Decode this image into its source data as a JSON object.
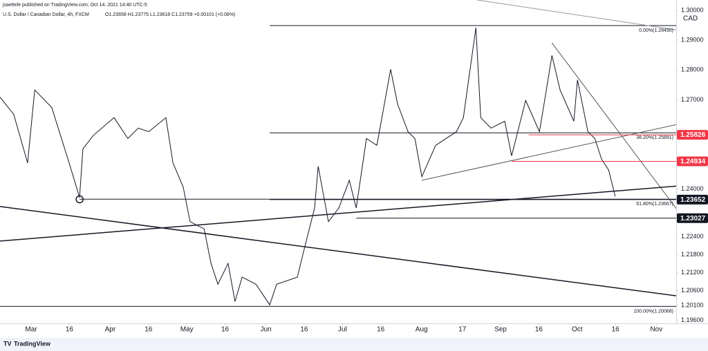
{
  "chart_data": {
    "type": "line",
    "publisher_note": "jsaettele published on TradingView.com, Oct 14, 2021 14:40 UTC-5",
    "title": "U.S. Dollar / Canadian Dollar, 4h, FXCM",
    "ohlc": "O1.23658 H1.23775 L1.23618 C1.23759 +0.00101 (+0.08%)",
    "currency": "CAD",
    "brand": "TradingView",
    "xlim": [
      -12.2,
      252.8
    ],
    "ylim": [
      1.19498,
      1.30349
    ],
    "xticks": [
      {
        "value": 0,
        "label": "Mar"
      },
      {
        "value": 15,
        "label": "16"
      },
      {
        "value": 31,
        "label": "Apr"
      },
      {
        "value": 46,
        "label": "16"
      },
      {
        "value": 61,
        "label": "May"
      },
      {
        "value": 76,
        "label": "16"
      },
      {
        "value": 92,
        "label": "Jun"
      },
      {
        "value": 107,
        "label": "16"
      },
      {
        "value": 122,
        "label": "Jul"
      },
      {
        "value": 137,
        "label": "16"
      },
      {
        "value": 153,
        "label": "Aug"
      },
      {
        "value": 169,
        "label": "17"
      },
      {
        "value": 184,
        "label": "Sep"
      },
      {
        "value": 199,
        "label": "16"
      },
      {
        "value": 214,
        "label": "Oct"
      },
      {
        "value": 229,
        "label": "16"
      },
      {
        "value": 245,
        "label": "Nov"
      }
    ],
    "yticks": [
      {
        "value": 1.3,
        "label": "1.30000"
      },
      {
        "value": 1.29,
        "label": "1.29000"
      },
      {
        "value": 1.28,
        "label": "1.28000"
      },
      {
        "value": 1.27,
        "label": "1.27000"
      },
      {
        "value": 1.24,
        "label": "1.24000"
      },
      {
        "value": 1.224,
        "label": "1.22400"
      },
      {
        "value": 1.218,
        "label": "1.21800"
      },
      {
        "value": 1.212,
        "label": "1.21200"
      },
      {
        "value": 1.206,
        "label": "1.20600"
      },
      {
        "value": 1.201,
        "label": "1.20100"
      },
      {
        "value": 1.196,
        "label": "1.19600"
      }
    ],
    "series": [
      {
        "name": "USD/CAD",
        "color": "#131722",
        "x": [
          -12.2,
          -6.8,
          -1.4,
          1.4,
          8.1,
          14.9,
          19.0,
          20.3,
          24.4,
          32.5,
          37.9,
          42.0,
          46.1,
          52.8,
          55.6,
          59.6,
          62.3,
          67.8,
          70.5,
          73.2,
          77.2,
          79.9,
          82.7,
          88.1,
          93.5,
          96.2,
          104.3,
          107.0,
          111.1,
          112.5,
          116.5,
          120.6,
          124.7,
          127.4,
          131.4,
          135.5,
          140.9,
          143.6,
          147.7,
          150.4,
          153.1,
          158.5,
          166.7,
          169.4,
          174.3,
          176.2,
          180.2,
          185.6,
          188.3,
          193.8,
          199.2,
          201.9,
          204.1,
          207.3,
          212.7,
          214.1,
          218.2,
          220.9,
          223.6,
          226.3,
          228.9
        ],
        "values": [
          1.2709,
          1.2651,
          1.2488,
          1.2733,
          1.2674,
          1.2488,
          1.2372,
          1.2535,
          1.2581,
          1.264,
          1.257,
          1.2605,
          1.2593,
          1.264,
          1.2488,
          1.2407,
          1.2291,
          1.2267,
          1.2151,
          1.2081,
          1.2151,
          1.2023,
          1.2105,
          1.2081,
          1.2012,
          1.2081,
          1.2105,
          1.2198,
          1.2337,
          1.2477,
          1.2291,
          1.2337,
          1.243,
          1.2337,
          1.257,
          1.2547,
          1.2802,
          1.2686,
          1.2593,
          1.257,
          1.2442,
          1.2547,
          1.2593,
          1.264,
          1.2942,
          1.264,
          1.2605,
          1.2628,
          1.2512,
          1.2698,
          1.2593,
          1.2733,
          1.2849,
          1.2733,
          1.2628,
          1.2767,
          1.2593,
          1.257,
          1.25,
          1.2465,
          1.2376
        ]
      }
    ],
    "fib_levels": [
      {
        "value": 1.2949,
        "label": "0.00%(1.29490)",
        "x_start": 93.5
      },
      {
        "value": 1.25891,
        "label": "38.20%(1.25891)",
        "x_start": 93.5
      },
      {
        "value": 1.23667,
        "label": "61.80%(1.23667)",
        "x_start": 19.0
      },
      {
        "value": 1.20068,
        "label": "100.00%(1.20068)",
        "x_start": -12.2
      }
    ],
    "price_labels": [
      {
        "value": 1.25826,
        "color": "#f23645",
        "x_start": 195.0
      },
      {
        "value": 1.24934,
        "color": "#f23645",
        "x_start": 188.3
      },
      {
        "value": 1.23652,
        "color": "#131722",
        "x_start": 93.5
      },
      {
        "value": 1.23027,
        "color": "#131722",
        "x_start": 127.4
      }
    ],
    "trendlines": [
      {
        "x": [
          174.8,
          265.3
        ],
        "y": [
          1.30349,
          1.2919
        ],
        "width": 1,
        "color": "#9598a1"
      },
      {
        "x": [
          204.1,
          258.8
        ],
        "y": [
          1.2891,
          1.2267
        ],
        "width": 1,
        "color": "#555"
      },
      {
        "x": [
          153.1,
          265.3
        ],
        "y": [
          1.243,
          1.264
        ],
        "width": 1,
        "color": "#555"
      },
      {
        "x": [
          -12.2,
          265.3
        ],
        "y": [
          1.2226,
          1.2419
        ],
        "width": 1.5,
        "color": "#131722"
      },
      {
        "x": [
          -12.2,
          265.3
        ],
        "y": [
          1.2342,
          1.2028
        ],
        "width": 1.5,
        "color": "#131722"
      }
    ],
    "marker": {
      "x": 19.0,
      "y": 1.2366
    }
  }
}
